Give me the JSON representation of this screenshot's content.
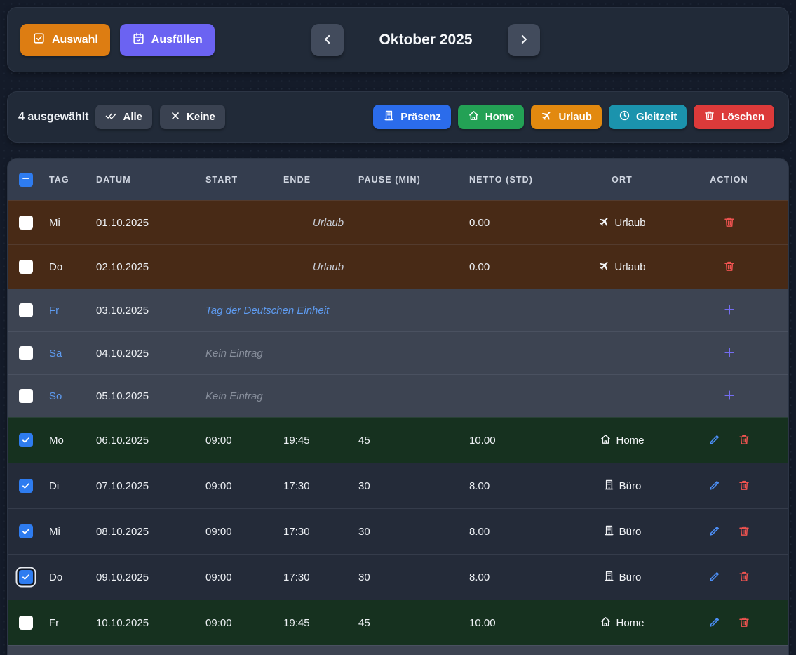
{
  "topbar": {
    "select_label": "Auswahl",
    "fill_label": "Ausfüllen",
    "month_title": "Oktober 2025"
  },
  "selection_bar": {
    "count_text": "4 ausgewählt",
    "all_label": "Alle",
    "none_label": "Keine",
    "actions": [
      {
        "label": "Präsenz",
        "icon": "building",
        "color": "#2b6ceb"
      },
      {
        "label": "Home",
        "icon": "house",
        "color": "#23a155"
      },
      {
        "label": "Urlaub",
        "icon": "plane",
        "color": "#e2890f"
      },
      {
        "label": "Gleitzeit",
        "icon": "clock",
        "color": "#1b93ad"
      },
      {
        "label": "Löschen",
        "icon": "trash",
        "color": "#dc3a3a"
      }
    ]
  },
  "table": {
    "columns": [
      "TAG",
      "DATUM",
      "START",
      "ENDE",
      "PAUSE (MIN)",
      "NETTO (STD)",
      "ORT",
      "ACTION"
    ],
    "header_checkbox_state": "indeterminate",
    "rows": [
      {
        "tag": "Mi",
        "datum": "01.10.2025",
        "note": "Urlaub",
        "note_type": "vacation",
        "netto": "0.00",
        "ort": "Urlaub",
        "ort_icon": "plane",
        "row_type": "vacation",
        "checked": false,
        "actions": [
          "delete"
        ]
      },
      {
        "tag": "Do",
        "datum": "02.10.2025",
        "note": "Urlaub",
        "note_type": "vacation",
        "netto": "0.00",
        "ort": "Urlaub",
        "ort_icon": "plane",
        "row_type": "vacation",
        "checked": false,
        "actions": [
          "delete"
        ]
      },
      {
        "tag": "Fr",
        "datum": "03.10.2025",
        "note": "Tag der Deutschen Einheit",
        "note_type": "holiday",
        "row_type": "weekend",
        "checked": false,
        "actions": [
          "add"
        ]
      },
      {
        "tag": "Sa",
        "datum": "04.10.2025",
        "note": "Kein Eintrag",
        "note_type": "empty",
        "row_type": "weekend",
        "checked": false,
        "actions": [
          "add"
        ]
      },
      {
        "tag": "So",
        "datum": "05.10.2025",
        "note": "Kein Eintrag",
        "note_type": "empty",
        "row_type": "weekend",
        "checked": false,
        "actions": [
          "add"
        ]
      },
      {
        "tag": "Mo",
        "datum": "06.10.2025",
        "start": "09:00",
        "ende": "19:45",
        "pause": "45",
        "netto": "10.00",
        "ort": "Home",
        "ort_icon": "house",
        "row_type": "home",
        "checked": true,
        "actions": [
          "edit",
          "delete"
        ]
      },
      {
        "tag": "Di",
        "datum": "07.10.2025",
        "start": "09:00",
        "ende": "17:30",
        "pause": "30",
        "netto": "8.00",
        "ort": "Büro",
        "ort_icon": "building",
        "row_type": "office",
        "checked": true,
        "actions": [
          "edit",
          "delete"
        ]
      },
      {
        "tag": "Mi",
        "datum": "08.10.2025",
        "start": "09:00",
        "ende": "17:30",
        "pause": "30",
        "netto": "8.00",
        "ort": "Büro",
        "ort_icon": "building",
        "row_type": "office",
        "checked": true,
        "actions": [
          "edit",
          "delete"
        ]
      },
      {
        "tag": "Do",
        "datum": "09.10.2025",
        "start": "09:00",
        "ende": "17:30",
        "pause": "30",
        "netto": "8.00",
        "ort": "Büro",
        "ort_icon": "building",
        "row_type": "office",
        "checked": true,
        "focused": true,
        "actions": [
          "edit",
          "delete"
        ]
      },
      {
        "tag": "Fr",
        "datum": "10.10.2025",
        "start": "09:00",
        "ende": "19:45",
        "pause": "45",
        "netto": "10.00",
        "ort": "Home",
        "ort_icon": "house",
        "row_type": "home",
        "checked": false,
        "actions": [
          "edit",
          "delete"
        ]
      }
    ],
    "partial_next_row": {
      "row_type": "weekend"
    }
  },
  "colors": {
    "checkbox_blue": "#2e7cf0",
    "edit_blue": "#4c8ff8",
    "delete_red": "#ef5350",
    "add_purple": "#746df2",
    "weekend_day_blue": "#5e9bf0"
  }
}
